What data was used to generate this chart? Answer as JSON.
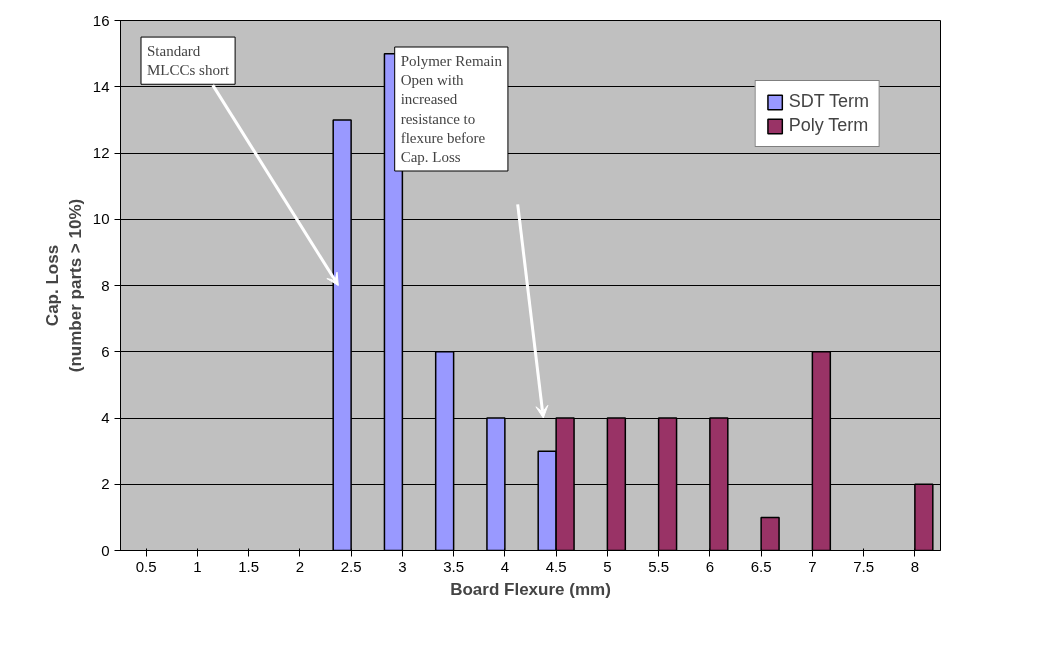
{
  "chart_data": {
    "type": "bar",
    "xlabel": "Board Flexure (mm)",
    "ylabel": "Cap. Loss\n(number parts > 10%)",
    "categories": [
      "0.5",
      "1",
      "1.5",
      "2",
      "2.5",
      "3",
      "3.5",
      "4",
      "4.5",
      "5",
      "5.5",
      "6",
      "6.5",
      "7",
      "7.5",
      "8"
    ],
    "series": [
      {
        "name": "SDT Term",
        "color": "#9999ff",
        "values": [
          null,
          null,
          null,
          null,
          13,
          15,
          6,
          4,
          3,
          null,
          null,
          null,
          null,
          null,
          null,
          null
        ]
      },
      {
        "name": "Poly Term",
        "color": "#993366",
        "values": [
          null,
          null,
          null,
          null,
          null,
          null,
          null,
          null,
          4,
          4,
          4,
          4,
          1,
          6,
          null,
          2
        ]
      }
    ],
    "ylim": [
      0,
      16
    ],
    "yticks": [
      0,
      2,
      4,
      6,
      8,
      10,
      12,
      14,
      16
    ],
    "grid": "y",
    "legend": "top right",
    "annotations": [
      "Standard MLCCs short",
      "Polymer Remain Open with increased resistance to flexure before Cap. Loss"
    ]
  }
}
